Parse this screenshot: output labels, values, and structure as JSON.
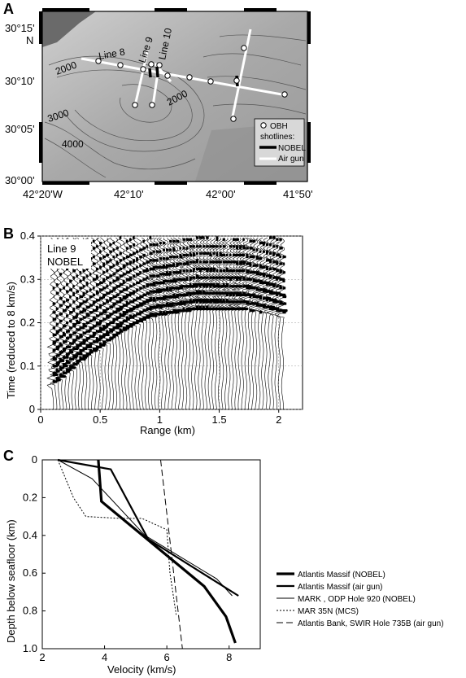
{
  "chart_data": [
    {
      "panel": "A",
      "type": "map",
      "y_ticks": [
        "30°15'",
        "N",
        "30°10'",
        "30°05'",
        "30°00'"
      ],
      "x_ticks": [
        "42°20'W",
        "42°10'",
        "42°00'",
        "41°50'"
      ],
      "contour_labels": [
        "2000",
        "2000",
        "3000",
        "4000"
      ],
      "line_labels": [
        "Line 8",
        "Line 9",
        "Line 10"
      ],
      "legend": {
        "obh": "OBH",
        "shotlines": "shotlines:",
        "nobel": "NOBEL",
        "airgun": "Air gun"
      },
      "colors": {
        "land_dark": "#555555",
        "relief": "#bdbdbd",
        "airgun": "#ffffff",
        "nobel": "#000000"
      }
    },
    {
      "panel": "B",
      "type": "seismic",
      "annotation": [
        "Line 9",
        "NOBEL"
      ],
      "xlabel": "Range (km)",
      "ylabel": "Time (reduced to 8 km/s)",
      "xlim": [
        0,
        2.2
      ],
      "ylim": [
        0,
        0.4
      ],
      "x_ticks": [
        "0",
        "0.5",
        "1",
        "1.5",
        "2"
      ],
      "y_ticks": [
        "0",
        "0.1",
        "0.2",
        "0.3",
        "0.4"
      ],
      "first_arrival": {
        "x": [
          0.1,
          0.3,
          0.5,
          0.7,
          0.9,
          1.1,
          1.3,
          1.5,
          1.7,
          1.9,
          2.05
        ],
        "y": [
          0.06,
          0.11,
          0.15,
          0.19,
          0.22,
          0.23,
          0.24,
          0.24,
          0.24,
          0.23,
          0.22
        ]
      }
    },
    {
      "panel": "C",
      "type": "line",
      "xlabel": "Velocity (km/s)",
      "ylabel": "Depth below seafloor (km)",
      "xlim": [
        2,
        9
      ],
      "ylim": [
        0,
        1.0
      ],
      "x_ticks": [
        "2",
        "4",
        "6",
        "8"
      ],
      "y_ticks": [
        "0",
        "0.2",
        "0.4",
        "0.6",
        "0.8",
        "1.0"
      ],
      "series": [
        {
          "name": "Atlantis Massif (NOBEL)",
          "style": "thick",
          "x": [
            3.8,
            3.9,
            7.2,
            7.9,
            8.2
          ],
          "y": [
            0,
            0.22,
            0.67,
            0.83,
            0.97
          ]
        },
        {
          "name": "Atlantis Massif (air gun)",
          "style": "medium",
          "x": [
            2.5,
            4.2,
            5.4,
            8.3
          ],
          "y": [
            0,
            0.05,
            0.42,
            0.72
          ]
        },
        {
          "name": "MARK , ODP Hole 920 (NOBEL)",
          "style": "thin",
          "x": [
            2.5,
            3.6,
            5.3,
            7.6,
            8.1
          ],
          "y": [
            0,
            0.1,
            0.4,
            0.63,
            0.72
          ]
        },
        {
          "name": "MAR 35N (MCS)",
          "style": "dotted",
          "x": [
            2.5,
            3.0,
            3.4,
            4.5,
            5.2,
            6.0,
            6.1,
            6.3
          ],
          "y": [
            0,
            0.2,
            0.3,
            0.31,
            0.31,
            0.37,
            0.6,
            0.82
          ]
        },
        {
          "name": "Atlantis Bank, SWIR Hole 735B (air gun)",
          "style": "dashed",
          "x": [
            5.8,
            6.5
          ],
          "y": [
            0,
            1.0
          ]
        }
      ]
    }
  ]
}
